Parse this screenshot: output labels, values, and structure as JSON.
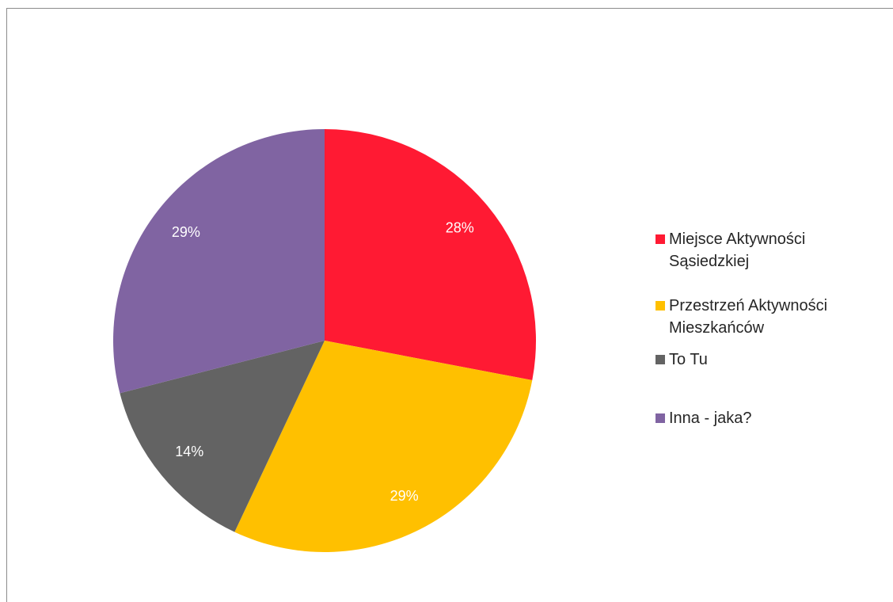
{
  "chart_data": {
    "type": "pie",
    "categories": [
      "Miejsce Aktywności Sąsiedzkiej",
      "Przestrzeń Aktywności Mieszkańców",
      "To Tu",
      "Inna - jaka?"
    ],
    "values": [
      28,
      29,
      14,
      29
    ],
    "value_labels": [
      "28%",
      "29%",
      "14%",
      "29%"
    ],
    "colors": [
      "#ff1a33",
      "#ffc000",
      "#636363",
      "#8064a2"
    ],
    "legend": "right"
  }
}
